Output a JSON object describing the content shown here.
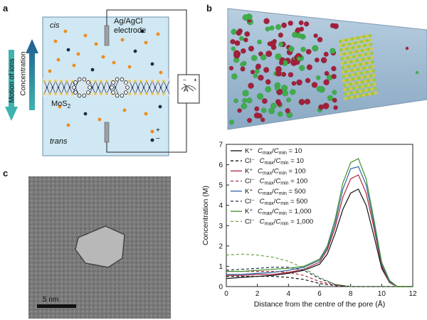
{
  "figure": {
    "panel_a": {
      "letter": "a",
      "cis": "cis",
      "trans": "trans",
      "electrode": [
        "Ag/AgCl",
        "electrode"
      ],
      "membrane": "MoS",
      "membrane_sub": "2",
      "left_axis": [
        "Motion of ions",
        "Concentration"
      ],
      "ammeter": "A",
      "legend_plus": "+",
      "legend_minus": "−",
      "colors": {
        "cation": "#f08a1c",
        "anion": "#1a2d4a",
        "reservoir": "#cfe8f3",
        "arrow_up": "#1f5d8f",
        "arrow_down": "#3fb3b0"
      }
    },
    "panel_b": {
      "letter": "b"
    },
    "panel_c": {
      "letter": "c",
      "scalebar": "5 nm"
    }
  },
  "chart_data": {
    "type": "line",
    "xlabel": "Distance from the centre of the pore (Å)",
    "ylabel": "Concentration (M)",
    "xlim": [
      0,
      12
    ],
    "ylim": [
      0,
      7
    ],
    "xticks": [
      "0",
      "2",
      "4",
      "6",
      "8",
      "10",
      "12"
    ],
    "yticks": [
      "0",
      "1",
      "2",
      "3",
      "4",
      "5",
      "6",
      "7"
    ],
    "grid": false,
    "legend_position": "top-left",
    "series": [
      {
        "ion": "K⁺",
        "ratio": "C",
        "sub1": "max",
        "sub2": "min",
        "value": " = 10",
        "color": "#111111",
        "dash": "solid",
        "x": [
          0,
          1,
          2,
          3,
          4,
          5,
          6,
          6.5,
          7,
          7.5,
          8,
          8.5,
          9,
          9.5,
          10,
          10.5,
          11,
          12
        ],
        "y": [
          0.4,
          0.45,
          0.5,
          0.55,
          0.65,
          0.8,
          1.1,
          1.6,
          2.6,
          3.8,
          4.6,
          4.8,
          4.0,
          2.5,
          0.9,
          0.2,
          0,
          0
        ]
      },
      {
        "ion": "Cl⁻",
        "ratio": "C",
        "sub1": "max",
        "sub2": "min",
        "value": " = 10",
        "color": "#111111",
        "dash": "dashed",
        "x": [
          0,
          1,
          2,
          3,
          4,
          5,
          6,
          7,
          8,
          9,
          10,
          12
        ],
        "y": [
          0.5,
          0.5,
          0.5,
          0.5,
          0.45,
          0.35,
          0.15,
          0.05,
          0,
          0,
          0,
          0
        ]
      },
      {
        "ion": "K⁺",
        "ratio": "C",
        "sub1": "max",
        "sub2": "min",
        "value": " = 100",
        "color": "#b0263c",
        "dash": "solid",
        "x": [
          0,
          1,
          2,
          3,
          4,
          5,
          6,
          6.5,
          7,
          7.5,
          8,
          8.5,
          9,
          9.5,
          10,
          10.5,
          11,
          12
        ],
        "y": [
          0.55,
          0.55,
          0.6,
          0.6,
          0.7,
          0.85,
          1.2,
          1.8,
          2.9,
          4.4,
          5.3,
          5.5,
          4.6,
          2.9,
          1.0,
          0.2,
          0,
          0
        ]
      },
      {
        "ion": "Cl⁻",
        "ratio": "C",
        "sub1": "max",
        "sub2": "min",
        "value": " = 100",
        "color": "#b0263c",
        "dash": "dashed",
        "x": [
          0,
          1,
          2,
          3,
          4,
          5,
          6,
          7,
          8,
          9,
          10,
          12
        ],
        "y": [
          0.75,
          0.75,
          0.75,
          0.75,
          0.7,
          0.55,
          0.25,
          0.08,
          0,
          0,
          0,
          0
        ]
      },
      {
        "ion": "K⁺",
        "ratio": "C",
        "sub1": "max",
        "sub2": "min",
        "value": " = 500",
        "color": "#2f66a6",
        "dash": "solid",
        "x": [
          0,
          1,
          2,
          3,
          4,
          5,
          6,
          6.5,
          7,
          7.5,
          8,
          8.5,
          9,
          9.5,
          10,
          10.5,
          11,
          12
        ],
        "y": [
          0.6,
          0.6,
          0.65,
          0.7,
          0.8,
          0.95,
          1.3,
          1.9,
          3.1,
          4.8,
          5.8,
          5.9,
          5.0,
          3.1,
          1.1,
          0.25,
          0,
          0
        ]
      },
      {
        "ion": "Cl⁻",
        "ratio": "C",
        "sub1": "max",
        "sub2": "min",
        "value": " = 500",
        "color": "#1a2d4a",
        "dash": "dashed",
        "x": [
          0,
          1,
          2,
          3,
          4,
          5,
          6,
          7,
          8,
          9,
          10,
          12
        ],
        "y": [
          0.8,
          0.85,
          0.9,
          0.95,
          0.95,
          0.8,
          0.4,
          0.1,
          0,
          0,
          0,
          0
        ]
      },
      {
        "ion": "K⁺",
        "ratio": "C",
        "sub1": "max",
        "sub2": "min",
        "value": " = 1,000",
        "color": "#3f8f2a",
        "dash": "solid",
        "x": [
          0,
          1,
          2,
          3,
          4,
          5,
          6,
          6.5,
          7,
          7.5,
          8,
          8.5,
          9,
          9.5,
          10,
          10.5,
          11,
          12
        ],
        "y": [
          0.75,
          0.75,
          0.8,
          0.85,
          0.9,
          1.0,
          1.35,
          2.0,
          3.3,
          5.1,
          6.1,
          6.3,
          5.3,
          3.3,
          1.2,
          0.3,
          0,
          0
        ]
      },
      {
        "ion": "Cl⁻",
        "ratio": "C",
        "sub1": "max",
        "sub2": "min",
        "value": " = 1,000",
        "color": "#6aa14a",
        "dash": "dashed",
        "x": [
          0,
          1,
          2,
          3,
          4,
          5,
          6,
          7,
          8,
          9,
          10,
          12
        ],
        "y": [
          1.55,
          1.6,
          1.55,
          1.45,
          1.25,
          0.9,
          0.45,
          0.12,
          0,
          0,
          0,
          0
        ]
      }
    ]
  }
}
